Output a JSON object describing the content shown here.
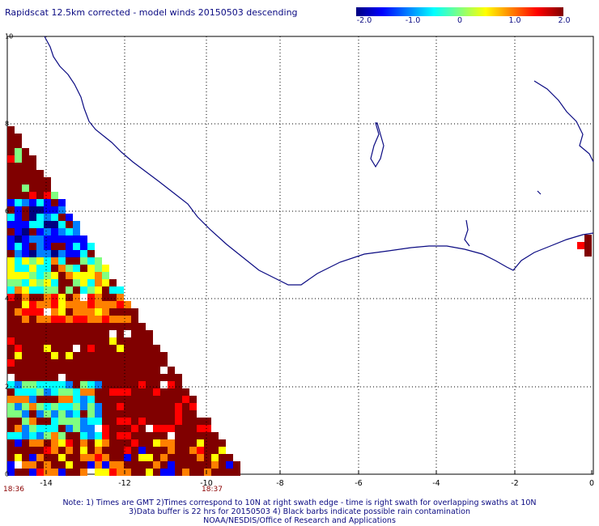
{
  "title": "Rapidscat 12.5km corrected - model winds 20150503 descending",
  "colorbar": {
    "tick_labels": [
      "-2.0",
      "-1.0",
      "0",
      "1.0",
      "2.0"
    ],
    "range": [
      -2.0,
      2.0
    ],
    "stops": [
      "#000080",
      "#0000ff",
      "#0080ff",
      "#00ffff",
      "#80ff80",
      "#ffff00",
      "#ff8000",
      "#ff0000",
      "#800000"
    ]
  },
  "axes": {
    "x_labels": [
      "-14",
      "-12",
      "-10",
      "-8",
      "-6",
      "-4",
      "-2",
      "0"
    ],
    "y_labels": [
      "0",
      "2",
      "4",
      "6",
      "8",
      "10"
    ],
    "x_range": [
      -15,
      0
    ],
    "y_range": [
      0,
      10
    ],
    "grid": "dotted"
  },
  "times": {
    "left": "18:36",
    "right": "18:37"
  },
  "notes": [
    "Note: 1) Times are GMT 2)Times correspond to 10N at right swath edge - time is right swath for overlapping swaths at 10N",
    "3)Data buffer is 22 hrs for 20150503 4) Black barbs indicate possible rain contamination",
    "NOAA/NESDIS/Office of Research and Applications"
  ],
  "map": {
    "coast_color": "#0a0a82",
    "land_color": "#ffffff",
    "background": "#ffffff"
  }
}
